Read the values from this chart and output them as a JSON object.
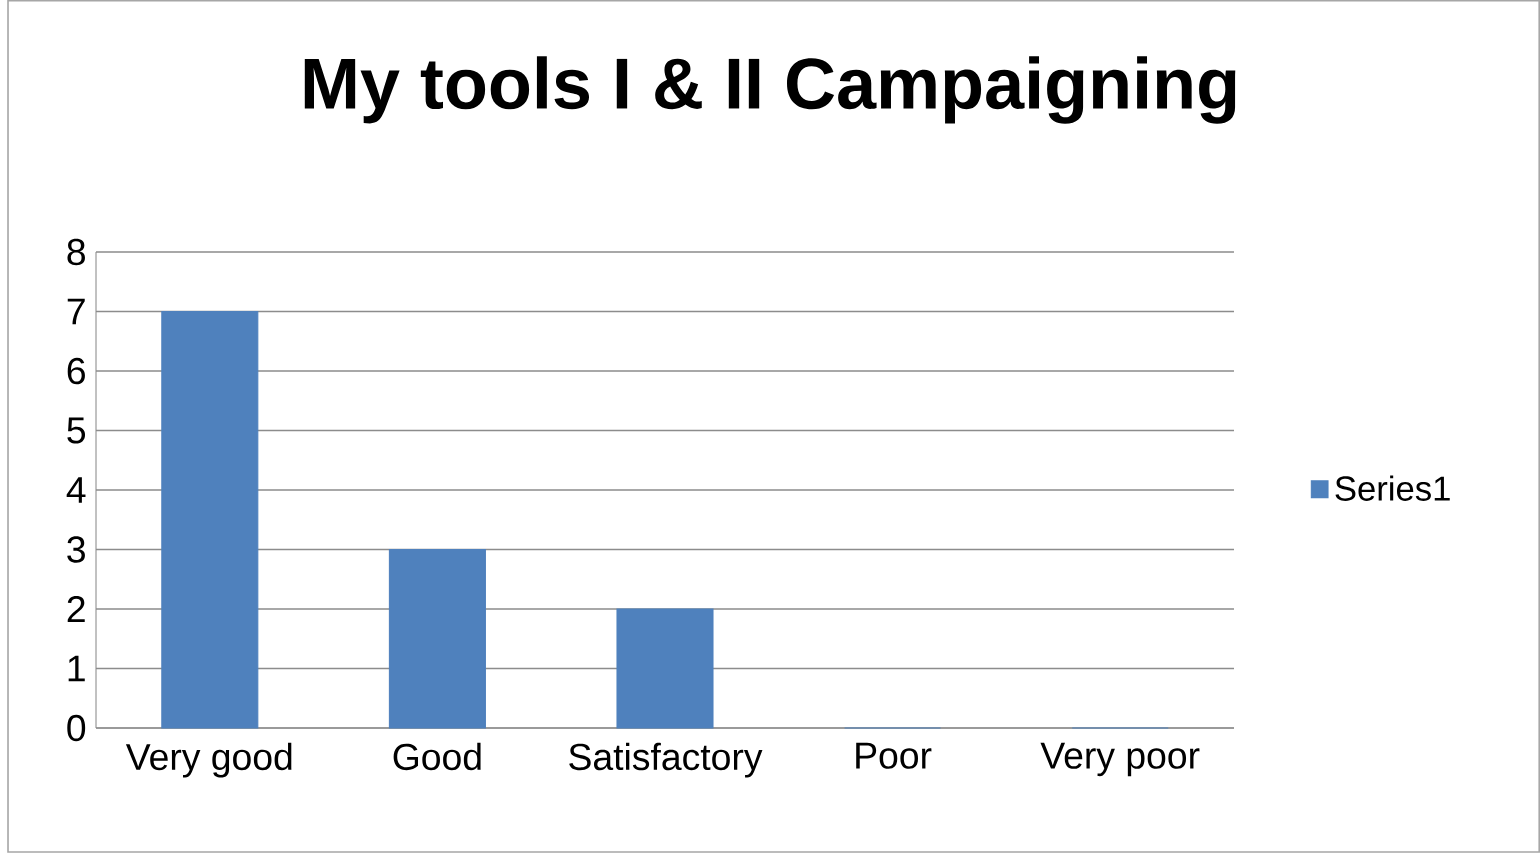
{
  "chart_data": {
    "type": "bar",
    "title": "My tools I & II Campaigning",
    "categories": [
      "Very good",
      "Good",
      "Satisfactory",
      "Poor",
      "Very poor"
    ],
    "series": [
      {
        "name": "Series1",
        "color": "#4f81bd",
        "values": [
          7,
          3,
          2,
          0,
          0
        ]
      }
    ],
    "ylim": [
      0,
      8
    ],
    "yticks": [
      0,
      1,
      2,
      3,
      4,
      5,
      6,
      7,
      8
    ],
    "grid": "y",
    "legend": "right"
  }
}
